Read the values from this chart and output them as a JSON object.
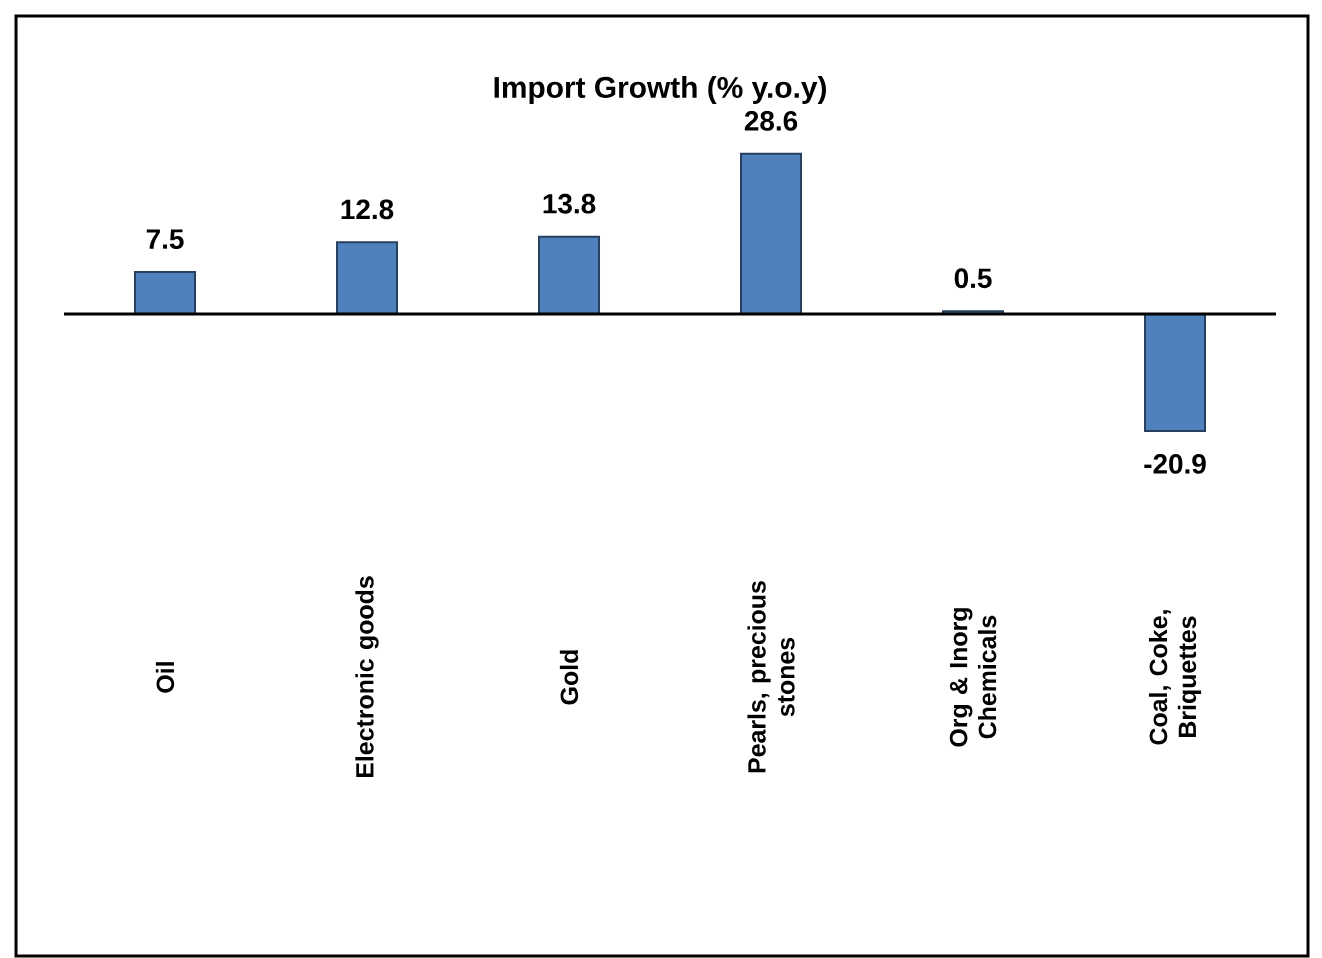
{
  "chart_data": {
    "type": "bar",
    "title": "Import Growth (% y.o.y)",
    "categories": [
      "Oil",
      "Electronic goods",
      "Gold",
      "Pearls, precious stones",
      "Org & Inorg Chemicals",
      "Coal, Coke, Briquettes"
    ],
    "values": [
      7.5,
      12.8,
      13.8,
      28.6,
      0.5,
      -20.9
    ],
    "color": "#4f81bd",
    "data_labels": true,
    "ref_lines": [
      {
        "axis": "y",
        "value": 0
      }
    ]
  }
}
